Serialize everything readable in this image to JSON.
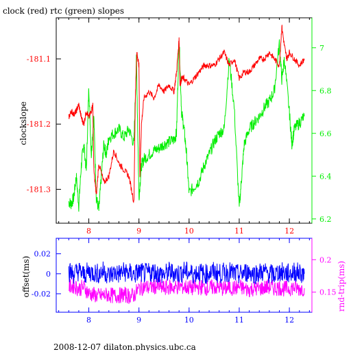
{
  "title": "clock (red) rtc (green) slopes",
  "footer": "2008-12-07  dilaton.physics.ubc.ca",
  "colors": {
    "clock": "#ff0000",
    "rtc": "#00ee00",
    "offset": "#0000ff",
    "rndtrip": "#ff00ff",
    "frame": "#000000"
  },
  "chart_data": [
    {
      "type": "line",
      "title": "clock (red) rtc (green) slopes",
      "xlabel": "",
      "x_ticks": [
        "8",
        "9",
        "10",
        "11",
        "12"
      ],
      "xlim": [
        7.35,
        12.45
      ],
      "y_left": {
        "label": "clockslope",
        "ticks": [
          "-181.1",
          "-181.2",
          "-181.3"
        ],
        "tick_values": [
          -181.1,
          -181.2,
          -181.3
        ],
        "ylim": [
          -181.352,
          -181.037
        ],
        "color": "#ff0000"
      },
      "y_right": {
        "label": "",
        "ticks": [
          "7",
          "6.8",
          "6.6",
          "6.4",
          "6.2"
        ],
        "tick_values": [
          7.0,
          6.8,
          6.6,
          6.4,
          6.2
        ],
        "ylim": [
          6.18,
          7.14
        ],
        "color": "#00ee00"
      },
      "series": [
        {
          "name": "clock",
          "axis": "left",
          "x": [
            7.6,
            7.65,
            7.7,
            7.75,
            7.8,
            7.85,
            7.9,
            7.95,
            8.0,
            8.05,
            8.08,
            8.1,
            8.15,
            8.2,
            8.3,
            8.4,
            8.5,
            8.6,
            8.7,
            8.8,
            8.9,
            8.93,
            8.96,
            9.0,
            9.02,
            9.05,
            9.1,
            9.2,
            9.3,
            9.4,
            9.5,
            9.6,
            9.7,
            9.75,
            9.8,
            9.82,
            9.85,
            9.9,
            10.0,
            10.1,
            10.2,
            10.3,
            10.4,
            10.5,
            10.6,
            10.7,
            10.8,
            10.9,
            11.0,
            11.1,
            11.2,
            11.3,
            11.4,
            11.5,
            11.6,
            11.7,
            11.8,
            11.85,
            11.9,
            11.95,
            12.0,
            12.1,
            12.2,
            12.3
          ],
          "y": [
            -181.19,
            -181.18,
            -181.185,
            -181.18,
            -181.17,
            -181.19,
            -181.2,
            -181.18,
            -181.19,
            -181.18,
            -181.17,
            -181.27,
            -181.31,
            -181.26,
            -181.29,
            -181.28,
            -181.24,
            -181.26,
            -181.27,
            -181.28,
            -181.32,
            -181.15,
            -181.09,
            -181.11,
            -181.28,
            -181.2,
            -181.16,
            -181.15,
            -181.16,
            -181.14,
            -181.15,
            -181.14,
            -181.15,
            -181.12,
            -181.07,
            -181.14,
            -181.13,
            -181.13,
            -181.14,
            -181.13,
            -181.12,
            -181.11,
            -181.11,
            -181.11,
            -181.1,
            -181.09,
            -181.11,
            -181.1,
            -181.13,
            -181.12,
            -181.12,
            -181.11,
            -181.1,
            -181.1,
            -181.09,
            -181.1,
            -181.11,
            -181.05,
            -181.08,
            -181.1,
            -181.09,
            -181.1,
            -181.11,
            -181.1
          ]
        },
        {
          "name": "rtc",
          "axis": "right",
          "x": [
            7.6,
            7.65,
            7.7,
            7.75,
            7.8,
            7.85,
            7.9,
            7.95,
            8.0,
            8.05,
            8.1,
            8.15,
            8.2,
            8.25,
            8.3,
            8.35,
            8.4,
            8.5,
            8.6,
            8.7,
            8.8,
            8.9,
            8.95,
            9.0,
            9.05,
            9.1,
            9.2,
            9.3,
            9.4,
            9.5,
            9.6,
            9.7,
            9.75,
            9.8,
            9.85,
            9.9,
            9.95,
            10.0,
            10.1,
            10.2,
            10.3,
            10.4,
            10.5,
            10.6,
            10.7,
            10.8,
            10.9,
            11.0,
            11.05,
            11.1,
            11.2,
            11.3,
            11.4,
            11.5,
            11.6,
            11.7,
            11.8,
            11.85,
            11.9,
            12.0,
            12.05,
            12.1,
            12.2,
            12.3
          ],
          "y": [
            6.28,
            6.27,
            6.3,
            6.4,
            6.26,
            6.45,
            6.56,
            6.42,
            6.82,
            6.5,
            6.68,
            6.3,
            6.24,
            6.4,
            6.55,
            6.5,
            6.58,
            6.6,
            6.62,
            6.58,
            6.62,
            6.55,
            6.95,
            6.3,
            6.45,
            6.48,
            6.5,
            6.52,
            6.53,
            6.55,
            6.56,
            6.57,
            6.6,
            7.05,
            6.7,
            6.62,
            6.5,
            6.32,
            6.35,
            6.38,
            6.45,
            6.5,
            6.56,
            6.6,
            6.62,
            6.95,
            6.72,
            6.25,
            6.4,
            6.55,
            6.62,
            6.65,
            6.68,
            6.72,
            6.75,
            6.8,
            7.02,
            6.85,
            6.95,
            6.7,
            6.55,
            6.62,
            6.65,
            6.68
          ]
        }
      ]
    },
    {
      "type": "line",
      "title": "",
      "xlabel": "",
      "x_ticks": [
        "8",
        "9",
        "10",
        "11",
        "12"
      ],
      "xlim": [
        7.35,
        12.45
      ],
      "y_left": {
        "label": "offset(ms)",
        "ticks": [
          "0.02",
          "0",
          "-0.02"
        ],
        "tick_values": [
          0.02,
          0.0,
          -0.02
        ],
        "ylim": [
          -0.0385,
          0.0355
        ],
        "color": "#0000ff"
      },
      "y_right": {
        "label": "rnd-trip(ms)",
        "ticks": [
          "0.2",
          "0.15"
        ],
        "tick_values": [
          0.2,
          0.15
        ],
        "ylim": [
          0.119,
          0.233
        ],
        "color": "#ff00ff"
      },
      "series": [
        {
          "name": "offset",
          "axis": "left",
          "x": [
            7.6,
            7.7,
            7.8,
            7.9,
            8.0,
            8.1,
            8.2,
            8.3,
            8.4,
            8.5,
            8.6,
            8.7,
            8.8,
            8.9,
            9.0,
            9.1,
            9.2,
            9.3,
            9.4,
            9.5,
            9.6,
            9.7,
            9.8,
            9.9,
            10.0,
            10.1,
            10.2,
            10.3,
            10.4,
            10.5,
            10.6,
            10.7,
            10.8,
            10.9,
            11.0,
            11.1,
            11.2,
            11.3,
            11.4,
            11.5,
            11.6,
            11.7,
            11.8,
            11.9,
            12.0,
            12.1,
            12.2,
            12.3
          ],
          "y": [
            0.002,
            0.0,
            0.003,
            -0.001,
            0.002,
            0.001,
            0.0,
            0.003,
            -0.002,
            0.001,
            0.0,
            0.002,
            0.001,
            -0.001,
            0.002,
            0.0,
            0.001,
            0.002,
            0.0,
            -0.001,
            0.002,
            0.001,
            0.0,
            0.003,
            0.001,
            0.0,
            0.002,
            -0.001,
            0.001,
            0.002,
            0.0,
            0.001,
            0.002,
            0.0,
            -0.001,
            0.001,
            0.002,
            0.0,
            0.001,
            0.002,
            0.0,
            -0.001,
            0.002,
            0.001,
            0.0,
            0.002,
            0.001,
            0.0
          ]
        },
        {
          "name": "rnd-trip",
          "axis": "right",
          "x": [
            7.6,
            7.7,
            7.8,
            7.9,
            8.0,
            8.1,
            8.2,
            8.3,
            8.4,
            8.5,
            8.6,
            8.7,
            8.8,
            8.9,
            9.0,
            9.1,
            9.2,
            9.3,
            9.4,
            9.5,
            9.6,
            9.7,
            9.8,
            9.9,
            10.0,
            10.1,
            10.2,
            10.3,
            10.4,
            10.5,
            10.6,
            10.7,
            10.8,
            10.9,
            11.0,
            11.1,
            11.2,
            11.3,
            11.4,
            11.5,
            11.6,
            11.7,
            11.8,
            11.9,
            12.0,
            12.1,
            12.2,
            12.3
          ],
          "y": [
            0.158,
            0.16,
            0.155,
            0.158,
            0.148,
            0.146,
            0.144,
            0.145,
            0.146,
            0.144,
            0.145,
            0.146,
            0.144,
            0.145,
            0.156,
            0.158,
            0.157,
            0.159,
            0.158,
            0.156,
            0.158,
            0.157,
            0.159,
            0.158,
            0.157,
            0.156,
            0.158,
            0.157,
            0.156,
            0.158,
            0.157,
            0.155,
            0.157,
            0.156,
            0.158,
            0.155,
            0.154,
            0.156,
            0.155,
            0.157,
            0.158,
            0.156,
            0.157,
            0.155,
            0.156,
            0.157,
            0.155,
            0.156
          ]
        }
      ]
    }
  ]
}
